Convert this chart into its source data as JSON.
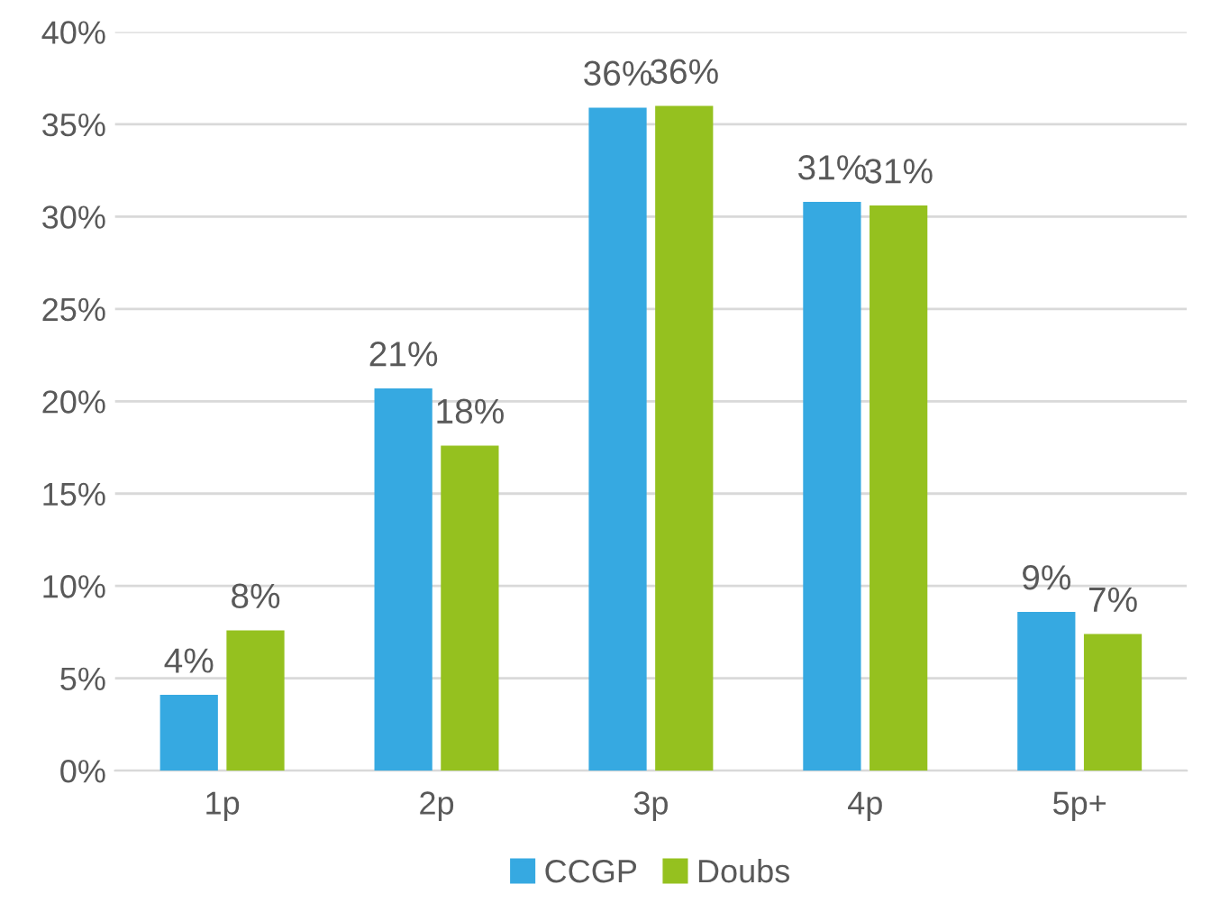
{
  "chart_data": {
    "type": "bar",
    "categories": [
      "1p",
      "2p",
      "3p",
      "4p",
      "5p+"
    ],
    "series": [
      {
        "name": "CCGP",
        "color": "#36a9e1",
        "values": [
          4.1,
          20.7,
          35.9,
          30.8,
          8.6
        ],
        "value_labels": [
          "4%",
          "21%",
          "36%",
          "31%",
          "9%"
        ]
      },
      {
        "name": "Doubs",
        "color": "#95c11f",
        "values": [
          7.6,
          17.6,
          36.0,
          30.6,
          7.4
        ],
        "value_labels": [
          "8%",
          "18%",
          "36%",
          "31%",
          "7%"
        ]
      }
    ],
    "ylim": [
      0,
      40
    ],
    "yticks": [
      {
        "value": 0,
        "label": "0%"
      },
      {
        "value": 5,
        "label": "5%"
      },
      {
        "value": 10,
        "label": "10%"
      },
      {
        "value": 15,
        "label": "15%"
      },
      {
        "value": 20,
        "label": "20%"
      },
      {
        "value": 25,
        "label": "25%"
      },
      {
        "value": 30,
        "label": "30%"
      },
      {
        "value": 35,
        "label": "35%"
      },
      {
        "value": 40,
        "label": "40%"
      }
    ],
    "grid": "y",
    "legend": "bottom"
  }
}
